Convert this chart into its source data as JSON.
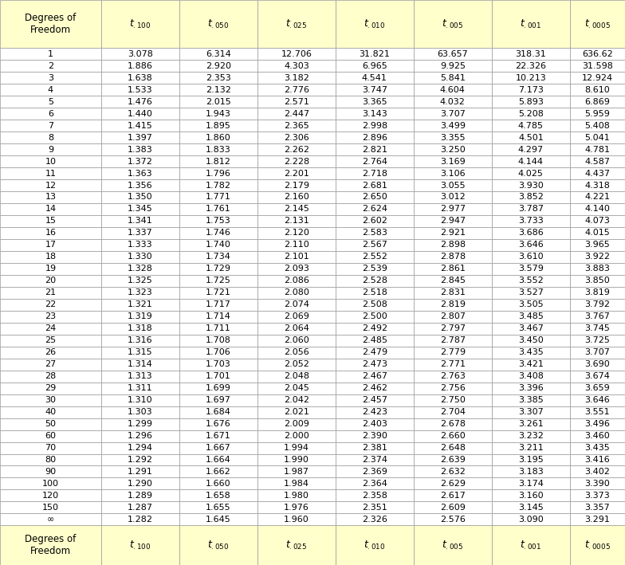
{
  "header_bg": "#FFFFCC",
  "body_bg": "#FFFFFF",
  "border_color": "#999999",
  "header_text_color": "#000000",
  "body_text_color": "#000000",
  "col_headers": [
    "Degrees of\nFreedom",
    "t_{100}",
    "t_{050}",
    "t_{025}",
    "t_{010}",
    "t_{005}",
    "t_{001}",
    "t_{0005}"
  ],
  "col_headers_display": [
    "Degrees of\nFreedom",
    "$t_{.100}$",
    "$t_{.050}$",
    "$t_{.025}$",
    "$t_{.010}$",
    "$t_{.005}$",
    "$t_{.001}$",
    "$t_{.0005}$"
  ],
  "rows": [
    [
      "1",
      "3.078",
      "6.314",
      "12.706",
      "31.821",
      "63.657",
      "318.31",
      "636.62"
    ],
    [
      "2",
      "1.886",
      "2.920",
      "4.303",
      "6.965",
      "9.925",
      "22.326",
      "31.598"
    ],
    [
      "3",
      "1.638",
      "2.353",
      "3.182",
      "4.541",
      "5.841",
      "10.213",
      "12.924"
    ],
    [
      "4",
      "1.533",
      "2.132",
      "2.776",
      "3.747",
      "4.604",
      "7.173",
      "8.610"
    ],
    [
      "5",
      "1.476",
      "2.015",
      "2.571",
      "3.365",
      "4.032",
      "5.893",
      "6.869"
    ],
    [
      "6",
      "1.440",
      "1.943",
      "2.447",
      "3.143",
      "3.707",
      "5.208",
      "5.959"
    ],
    [
      "7",
      "1.415",
      "1.895",
      "2.365",
      "2.998",
      "3.499",
      "4.785",
      "5.408"
    ],
    [
      "8",
      "1.397",
      "1.860",
      "2.306",
      "2.896",
      "3.355",
      "4.501",
      "5.041"
    ],
    [
      "9",
      "1.383",
      "1.833",
      "2.262",
      "2.821",
      "3.250",
      "4.297",
      "4.781"
    ],
    [
      "10",
      "1.372",
      "1.812",
      "2.228",
      "2.764",
      "3.169",
      "4.144",
      "4.587"
    ],
    [
      "11",
      "1.363",
      "1.796",
      "2.201",
      "2.718",
      "3.106",
      "4.025",
      "4.437"
    ],
    [
      "12",
      "1.356",
      "1.782",
      "2.179",
      "2.681",
      "3.055",
      "3.930",
      "4.318"
    ],
    [
      "13",
      "1.350",
      "1.771",
      "2.160",
      "2.650",
      "3.012",
      "3.852",
      "4.221"
    ],
    [
      "14",
      "1.345",
      "1.761",
      "2.145",
      "2.624",
      "2.977",
      "3.787",
      "4.140"
    ],
    [
      "15",
      "1.341",
      "1.753",
      "2.131",
      "2.602",
      "2.947",
      "3.733",
      "4.073"
    ],
    [
      "16",
      "1.337",
      "1.746",
      "2.120",
      "2.583",
      "2.921",
      "3.686",
      "4.015"
    ],
    [
      "17",
      "1.333",
      "1.740",
      "2.110",
      "2.567",
      "2.898",
      "3.646",
      "3.965"
    ],
    [
      "18",
      "1.330",
      "1.734",
      "2.101",
      "2.552",
      "2.878",
      "3.610",
      "3.922"
    ],
    [
      "19",
      "1.328",
      "1.729",
      "2.093",
      "2.539",
      "2.861",
      "3.579",
      "3.883"
    ],
    [
      "20",
      "1.325",
      "1.725",
      "2.086",
      "2.528",
      "2.845",
      "3.552",
      "3.850"
    ],
    [
      "21",
      "1.323",
      "1.721",
      "2.080",
      "2.518",
      "2.831",
      "3.527",
      "3.819"
    ],
    [
      "22",
      "1.321",
      "1.717",
      "2.074",
      "2.508",
      "2.819",
      "3.505",
      "3.792"
    ],
    [
      "23",
      "1.319",
      "1.714",
      "2.069",
      "2.500",
      "2.807",
      "3.485",
      "3.767"
    ],
    [
      "24",
      "1.318",
      "1.711",
      "2.064",
      "2.492",
      "2.797",
      "3.467",
      "3.745"
    ],
    [
      "25",
      "1.316",
      "1.708",
      "2.060",
      "2.485",
      "2.787",
      "3.450",
      "3.725"
    ],
    [
      "26",
      "1.315",
      "1.706",
      "2.056",
      "2.479",
      "2.779",
      "3.435",
      "3.707"
    ],
    [
      "27",
      "1.314",
      "1.703",
      "2.052",
      "2.473",
      "2.771",
      "3.421",
      "3.690"
    ],
    [
      "28",
      "1.313",
      "1.701",
      "2.048",
      "2.467",
      "2.763",
      "3.408",
      "3.674"
    ],
    [
      "29",
      "1.311",
      "1.699",
      "2.045",
      "2.462",
      "2.756",
      "3.396",
      "3.659"
    ],
    [
      "30",
      "1.310",
      "1.697",
      "2.042",
      "2.457",
      "2.750",
      "3.385",
      "3.646"
    ],
    [
      "40",
      "1.303",
      "1.684",
      "2.021",
      "2.423",
      "2.704",
      "3.307",
      "3.551"
    ],
    [
      "50",
      "1.299",
      "1.676",
      "2.009",
      "2.403",
      "2.678",
      "3.261",
      "3.496"
    ],
    [
      "60",
      "1.296",
      "1.671",
      "2.000",
      "2.390",
      "2.660",
      "3.232",
      "3.460"
    ],
    [
      "70",
      "1.294",
      "1.667",
      "1.994",
      "2.381",
      "2.648",
      "3.211",
      "3.435"
    ],
    [
      "80",
      "1.292",
      "1.664",
      "1.990",
      "2.374",
      "2.639",
      "3.195",
      "3.416"
    ],
    [
      "90",
      "1.291",
      "1.662",
      "1.987",
      "2.369",
      "2.632",
      "3.183",
      "3.402"
    ],
    [
      "100",
      "1.290",
      "1.660",
      "1.984",
      "2.364",
      "2.629",
      "3.174",
      "3.390"
    ],
    [
      "120",
      "1.289",
      "1.658",
      "1.980",
      "2.358",
      "2.617",
      "3.160",
      "3.373"
    ],
    [
      "150",
      "1.287",
      "1.655",
      "1.976",
      "2.351",
      "2.609",
      "3.145",
      "3.357"
    ],
    [
      "∞",
      "1.282",
      "1.645",
      "1.960",
      "2.326",
      "2.576",
      "3.090",
      "3.291"
    ]
  ],
  "figsize": [
    7.84,
    7.09
  ],
  "dpi": 100
}
